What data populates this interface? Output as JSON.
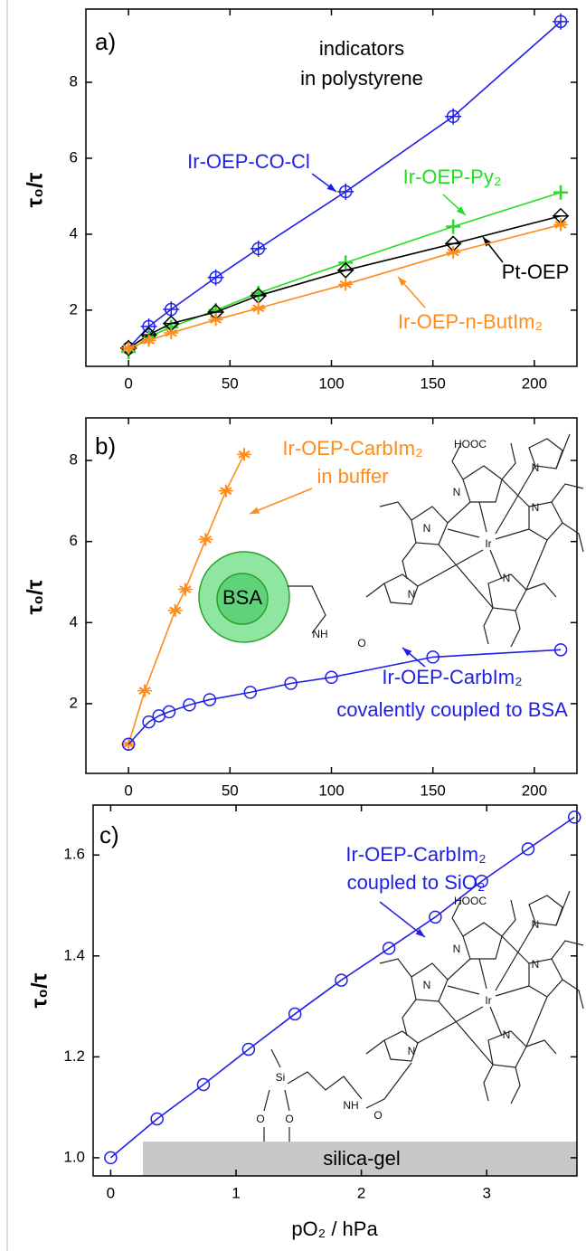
{
  "chart_data": [
    {
      "type": "line",
      "panel_label": "a)",
      "ylabel": "τ₀/τ",
      "annotations": [
        "indicators",
        "in polystyrene"
      ],
      "xlim": [
        -21,
        221
      ],
      "ylim": [
        0.52,
        9.93
      ],
      "xticks": [
        0,
        50,
        100,
        150,
        200
      ],
      "yticks": [
        2,
        4,
        6,
        8
      ],
      "series": [
        {
          "name": "Ir-OEP-CO-Cl",
          "color": "#1f1fe6",
          "marker": "circlecross",
          "x": [
            0,
            10,
            21,
            43,
            64,
            107,
            160,
            213
          ],
          "values": [
            1.0,
            1.57,
            2.02,
            2.86,
            3.62,
            5.12,
            7.1,
            9.6
          ]
        },
        {
          "name": "Ir-OEP-Py₂",
          "color": "#22dd22",
          "marker": "plus",
          "x": [
            0,
            10,
            21,
            43,
            64,
            107,
            160,
            213
          ],
          "values": [
            0.9,
            1.3,
            1.55,
            2.0,
            2.45,
            3.25,
            4.2,
            5.1
          ]
        },
        {
          "name": "Pt-OEP",
          "color": "#000000",
          "marker": "diamond",
          "x": [
            0,
            10,
            21,
            43,
            64,
            107,
            160,
            213
          ],
          "values": [
            1.0,
            1.35,
            1.65,
            1.95,
            2.38,
            3.05,
            3.75,
            4.48
          ]
        },
        {
          "name": "Ir-OEP-n-ButIm₂",
          "color": "#ff8c1a",
          "marker": "star",
          "x": [
            0,
            10,
            21,
            43,
            64,
            107,
            160,
            213
          ],
          "values": [
            1.0,
            1.2,
            1.4,
            1.75,
            2.05,
            2.68,
            3.52,
            4.25
          ]
        }
      ]
    },
    {
      "type": "line",
      "panel_label": "b)",
      "ylabel": "τ₀/τ",
      "annotations": [
        "in buffer",
        "covalently coupled to BSA",
        "BSA"
      ],
      "structure_labels": [
        "HOOC",
        "Ir",
        "N",
        "N",
        "N",
        "N",
        "N",
        "N",
        "NH",
        "O"
      ],
      "xlim": [
        -21,
        221
      ],
      "ylim": [
        0.28,
        9.05
      ],
      "xticks": [
        0,
        50,
        100,
        150,
        200
      ],
      "yticks": [
        2,
        4,
        6,
        8
      ],
      "series": [
        {
          "name": "Ir-OEP-CarbIm₂",
          "color": "#ff8c1a",
          "marker": "star",
          "x": [
            0,
            8,
            23,
            28,
            38,
            48,
            57
          ],
          "values": [
            1.0,
            2.32,
            4.3,
            4.82,
            6.05,
            7.25,
            8.15
          ]
        },
        {
          "name": "Ir-OEP-CarbIm₂",
          "color": "#1f1fe6",
          "marker": "circle",
          "x": [
            0,
            10,
            15,
            20,
            30,
            40,
            60,
            80,
            100,
            150,
            213
          ],
          "values": [
            1.0,
            1.55,
            1.7,
            1.8,
            1.97,
            2.1,
            2.28,
            2.5,
            2.65,
            3.15,
            3.33
          ]
        }
      ]
    },
    {
      "type": "line",
      "panel_label": "c)",
      "ylabel": "τ₀/τ",
      "xlabel": "pO₂ / hPa",
      "annotations": [
        "coupled to SiO₂",
        "silica-gel"
      ],
      "structure_labels": [
        "HOOC",
        "Ir",
        "N",
        "N",
        "N",
        "N",
        "N",
        "N",
        "NH",
        "O",
        "Si",
        "O",
        "O"
      ],
      "xlim": [
        -0.14,
        3.72
      ],
      "ylim": [
        0.964,
        1.699
      ],
      "xticks": [
        0,
        1,
        2,
        3
      ],
      "yticks": [
        {
          "value": 1,
          "label": "1.0"
        },
        1.2,
        1.4,
        1.6
      ],
      "series": [
        {
          "name": "Ir-OEP-CarbIm₂",
          "color": "#1f1fe6",
          "marker": "circle",
          "x": [
            0,
            0.37,
            0.74,
            1.1,
            1.47,
            1.84,
            2.22,
            2.59,
            2.96,
            3.33,
            3.7
          ],
          "values": [
            1.0,
            1.077,
            1.145,
            1.215,
            1.285,
            1.352,
            1.415,
            1.477,
            1.548,
            1.612,
            1.675
          ]
        }
      ]
    }
  ]
}
